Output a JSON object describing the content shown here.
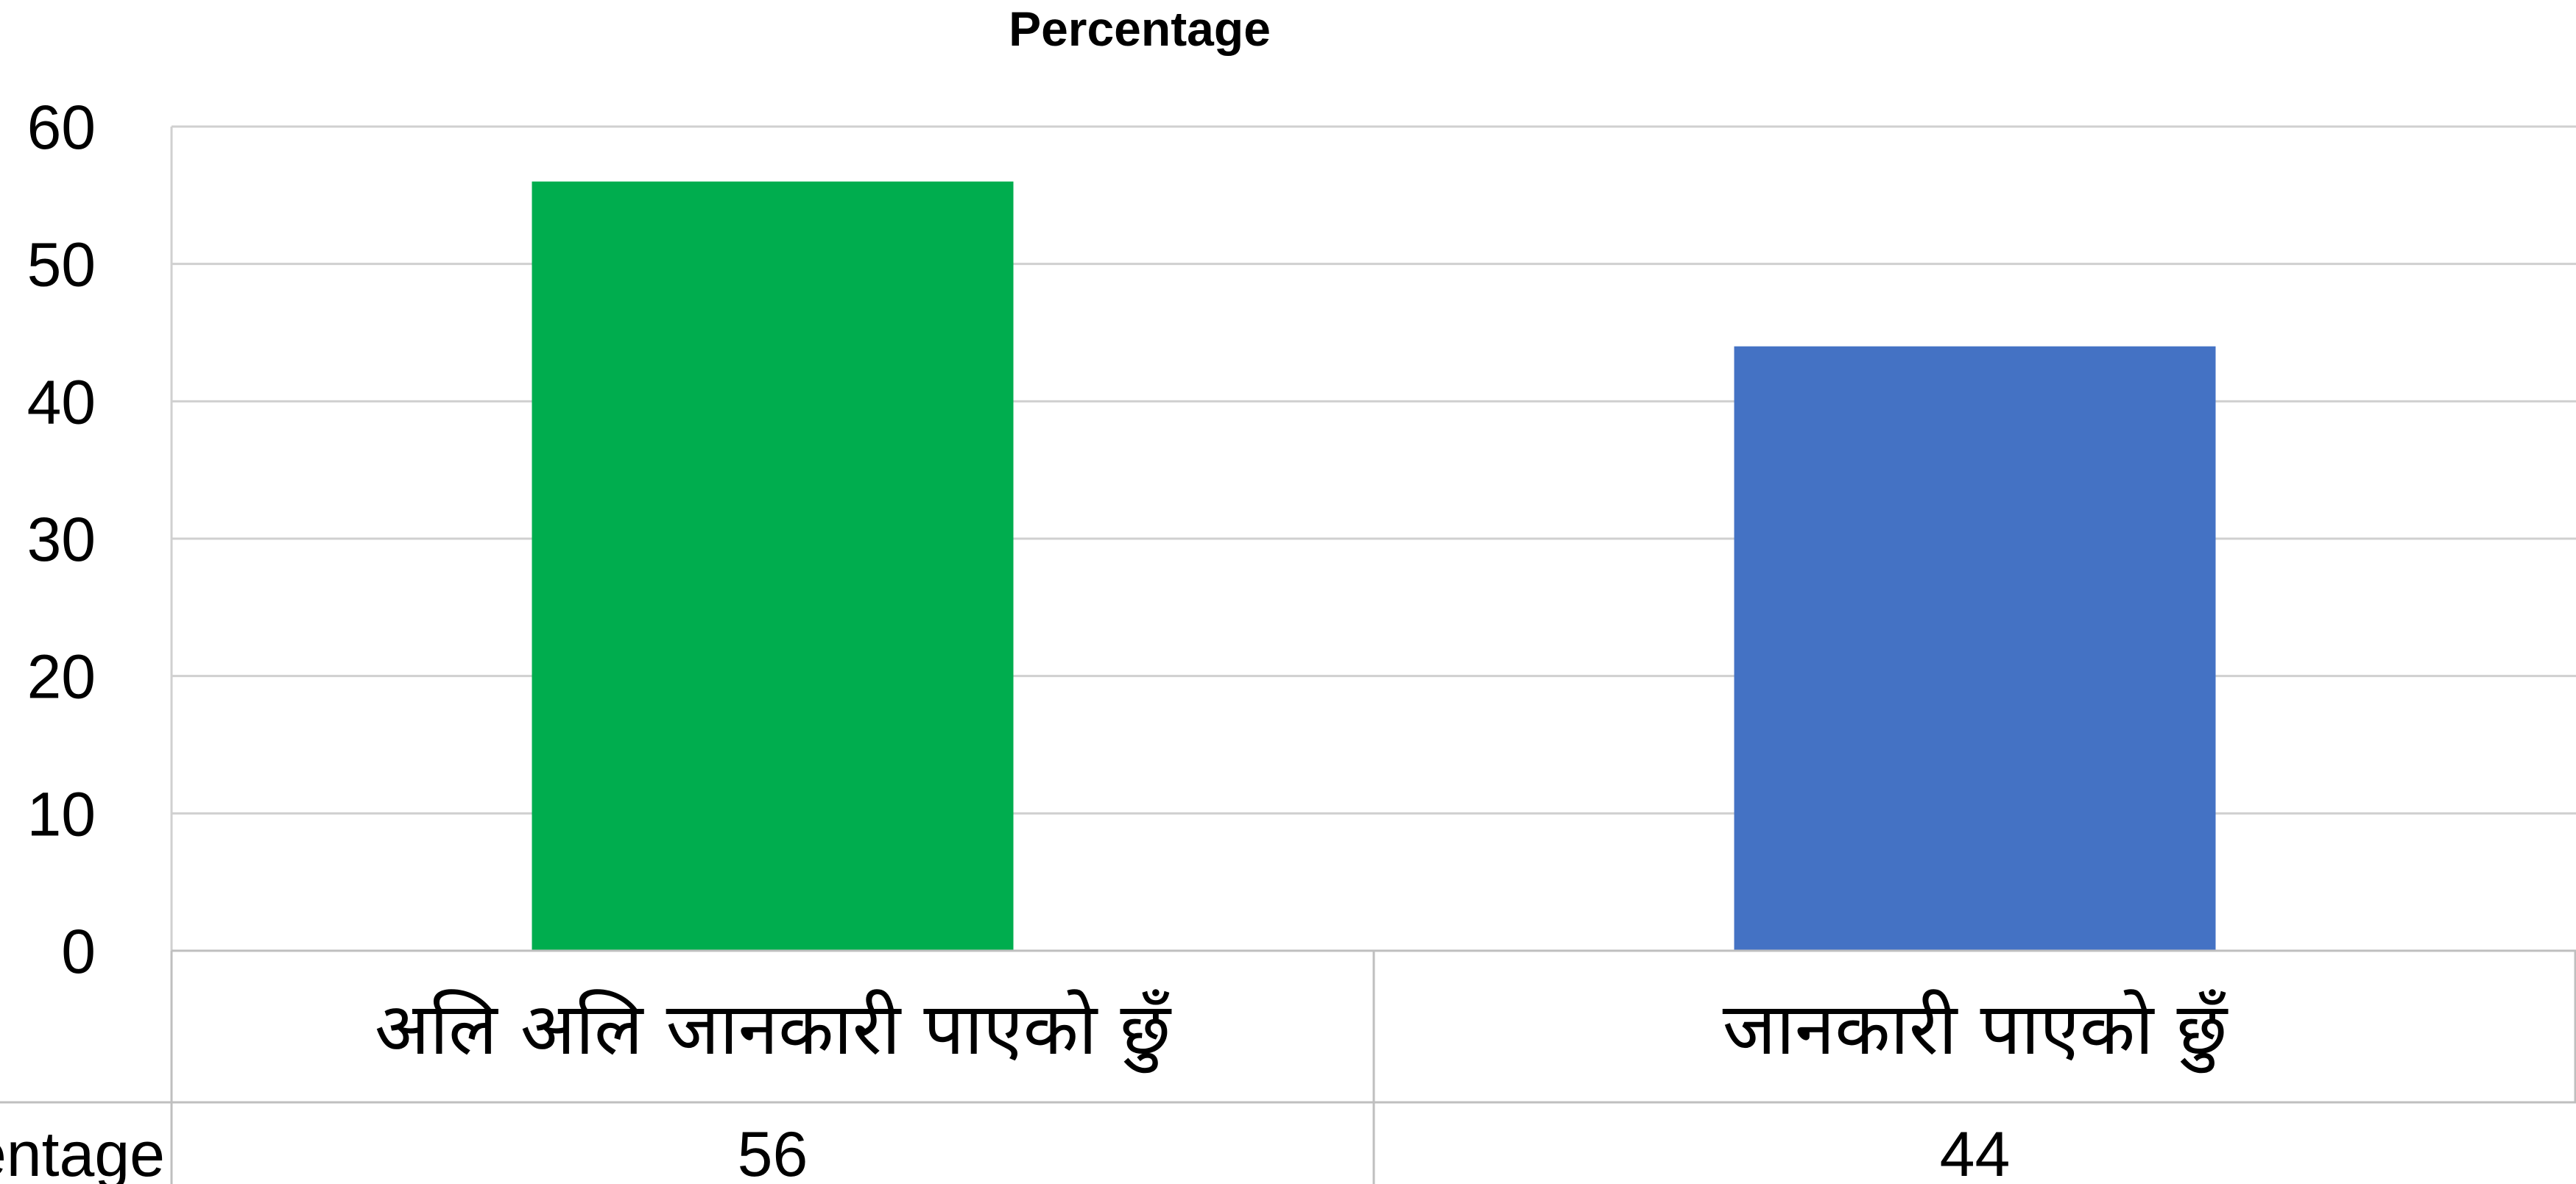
{
  "chart_data": {
    "type": "bar",
    "title": "Percentage",
    "categories": [
      "अलि अलि जानकारी पाएको छुँ",
      "जानकारी पाएको छुँ"
    ],
    "series": [
      {
        "name": "Percentage",
        "values": [
          56,
          44
        ]
      }
    ],
    "bar_colors": [
      "#00AD4E",
      "#4472C4"
    ],
    "ylim": [
      0,
      60
    ],
    "yticks": [
      0,
      10,
      20,
      30,
      40,
      50,
      60
    ],
    "grid": true,
    "data_table": {
      "row_label": "Percentage",
      "values": [
        "56",
        "44"
      ]
    }
  }
}
